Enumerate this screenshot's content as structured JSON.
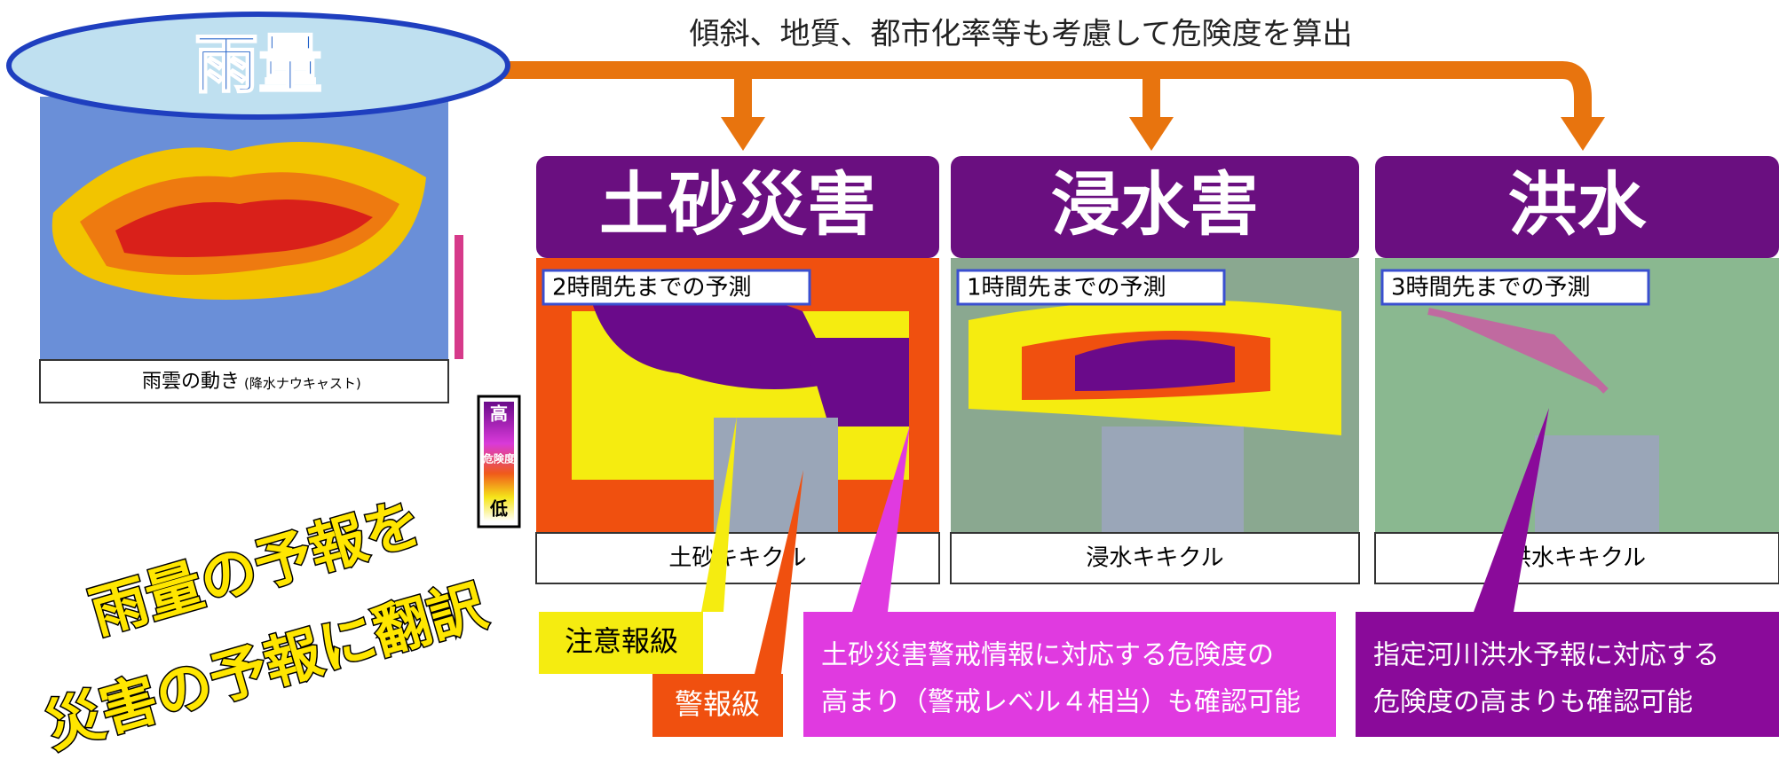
{
  "top_note": "傾斜、地質、都市化率等も考慮して危険度を算出",
  "rain": {
    "title": "雨量",
    "caption": "雨雲の動き",
    "caption_sub": "(降水ナウキャスト)"
  },
  "legend": {
    "high": "高",
    "mid": "危険度",
    "low": "低"
  },
  "panels": [
    {
      "title": "土砂災害",
      "forecast": "2時間先までの予測",
      "name": "土砂キキクル"
    },
    {
      "title": "浸水害",
      "forecast": "1時間先までの予測",
      "name": "浸水キキクル"
    },
    {
      "title": "洪水",
      "forecast": "3時間先までの予測",
      "name": "洪水キキクル"
    }
  ],
  "slogan": [
    "雨量の予報を",
    "災害の予報に翻訳"
  ],
  "callouts": {
    "caution": "注意報級",
    "warning": "警報級",
    "sediment": [
      "土砂災害警戒情報に対応する危険度の",
      "高まり（警戒レベル４相当）も確認可能"
    ],
    "flood": [
      "指定河川洪水予報に対応する",
      "危険度の高まりも確認可能"
    ]
  }
}
